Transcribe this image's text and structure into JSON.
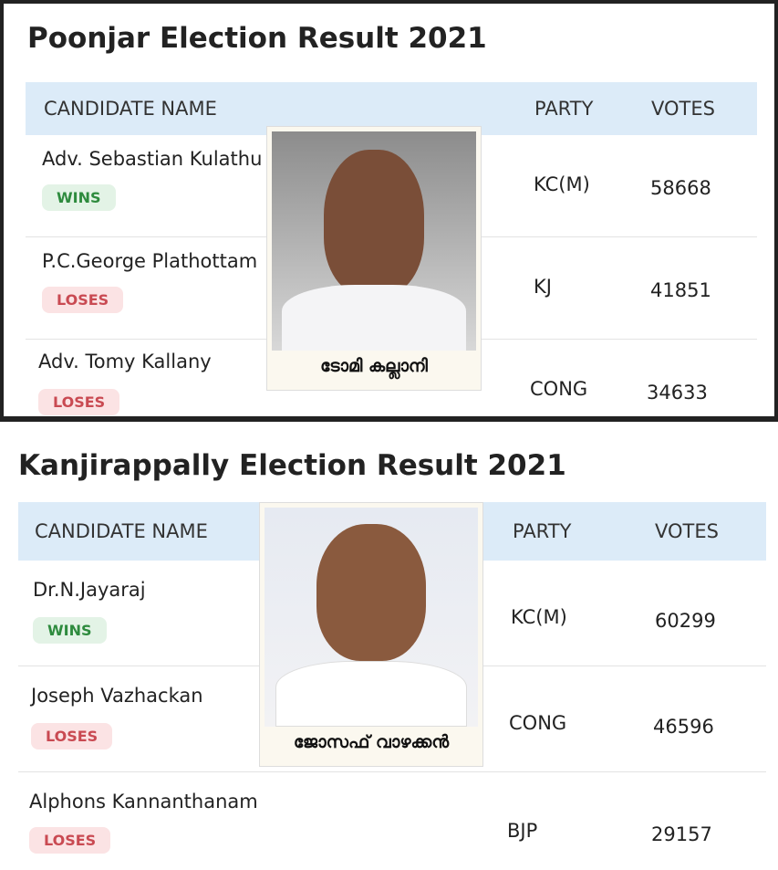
{
  "tables": [
    {
      "title": "Poonjar Election Result 2021",
      "headers": {
        "name": "CANDIDATE NAME",
        "party": "PARTY",
        "votes": "VOTES"
      },
      "rows": [
        {
          "name": "Adv. Sebastian Kulathu",
          "status": "WINS",
          "party": "KC(M)",
          "votes": "58668"
        },
        {
          "name": "P.C.George Plathottam",
          "status": "LOSES",
          "party": "KJ",
          "votes": "41851"
        },
        {
          "name": "Adv. Tomy Kallany",
          "status": "LOSES",
          "party": "CONG",
          "votes": "34633"
        }
      ],
      "photo_caption": "ടോമി കല്ലാനി"
    },
    {
      "title": "Kanjirappally Election Result 2021",
      "headers": {
        "name": "CANDIDATE NAME",
        "party": "PARTY",
        "votes": "VOTES"
      },
      "rows": [
        {
          "name": "Dr.N.Jayaraj",
          "status": "WINS",
          "party": "KC(M)",
          "votes": "60299"
        },
        {
          "name": "Joseph Vazhackan",
          "status": "LOSES",
          "party": "CONG",
          "votes": "46596"
        },
        {
          "name": "Alphons Kannanthanam",
          "status": "LOSES",
          "party": "BJP",
          "votes": "29157"
        }
      ],
      "photo_caption": "ജോസഫ് വാഴക്കൻ"
    }
  ],
  "colors": {
    "header_bg": "#dcebf8",
    "win": "#2e8b3e",
    "lose": "#c94a52"
  }
}
